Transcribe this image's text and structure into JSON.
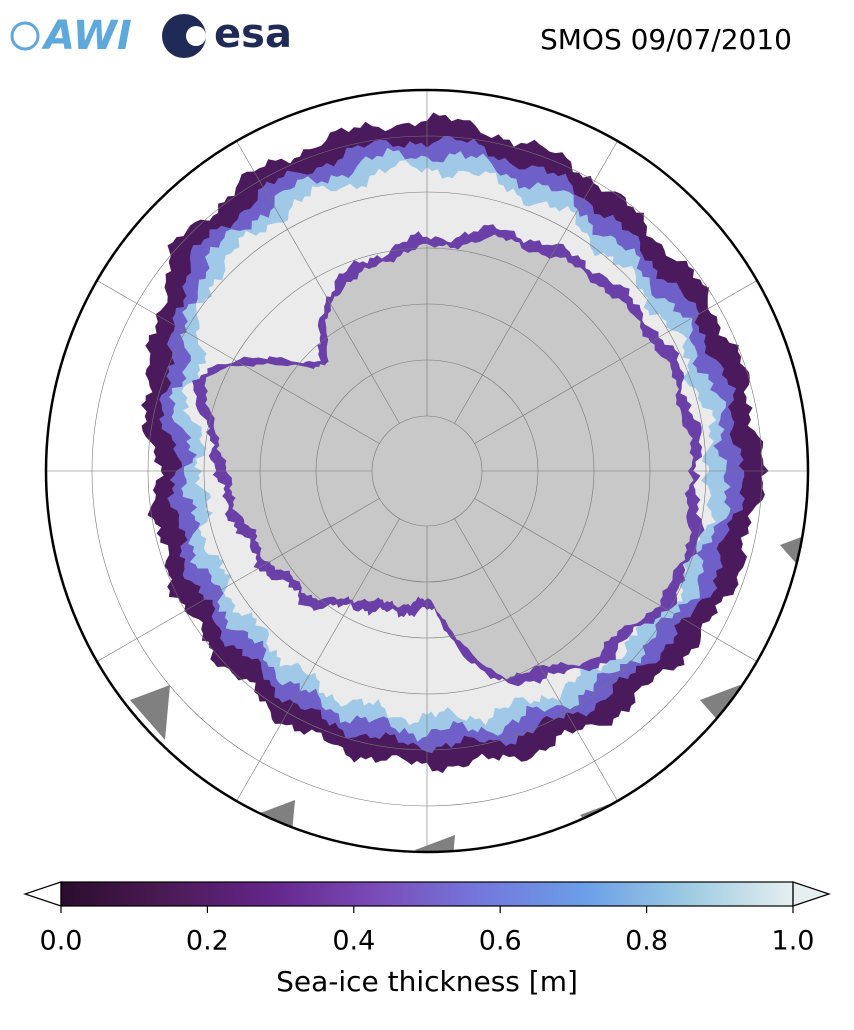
{
  "header": {
    "logos": [
      "AWI",
      "esa"
    ],
    "title": "SMOS 09/07/2010"
  },
  "colorbar": {
    "label": "Sea-ice thickness [m]",
    "lim": [
      0,
      1
    ],
    "ticks": [
      {
        "value": 0,
        "label": "0.0"
      },
      {
        "value": 0.2,
        "label": "0.2"
      },
      {
        "value": 0.4,
        "label": "0.4"
      },
      {
        "value": 0.6,
        "label": "0.6"
      },
      {
        "value": 0.8,
        "label": "0.8"
      },
      {
        "value": 1,
        "label": "1.0"
      }
    ],
    "colors": [
      "#2a0d2c",
      "#4b1a55",
      "#63268a",
      "#7a4bb8",
      "#7477dc",
      "#6a9ee8",
      "#9dcbe2",
      "#e6eff0"
    ]
  }
}
